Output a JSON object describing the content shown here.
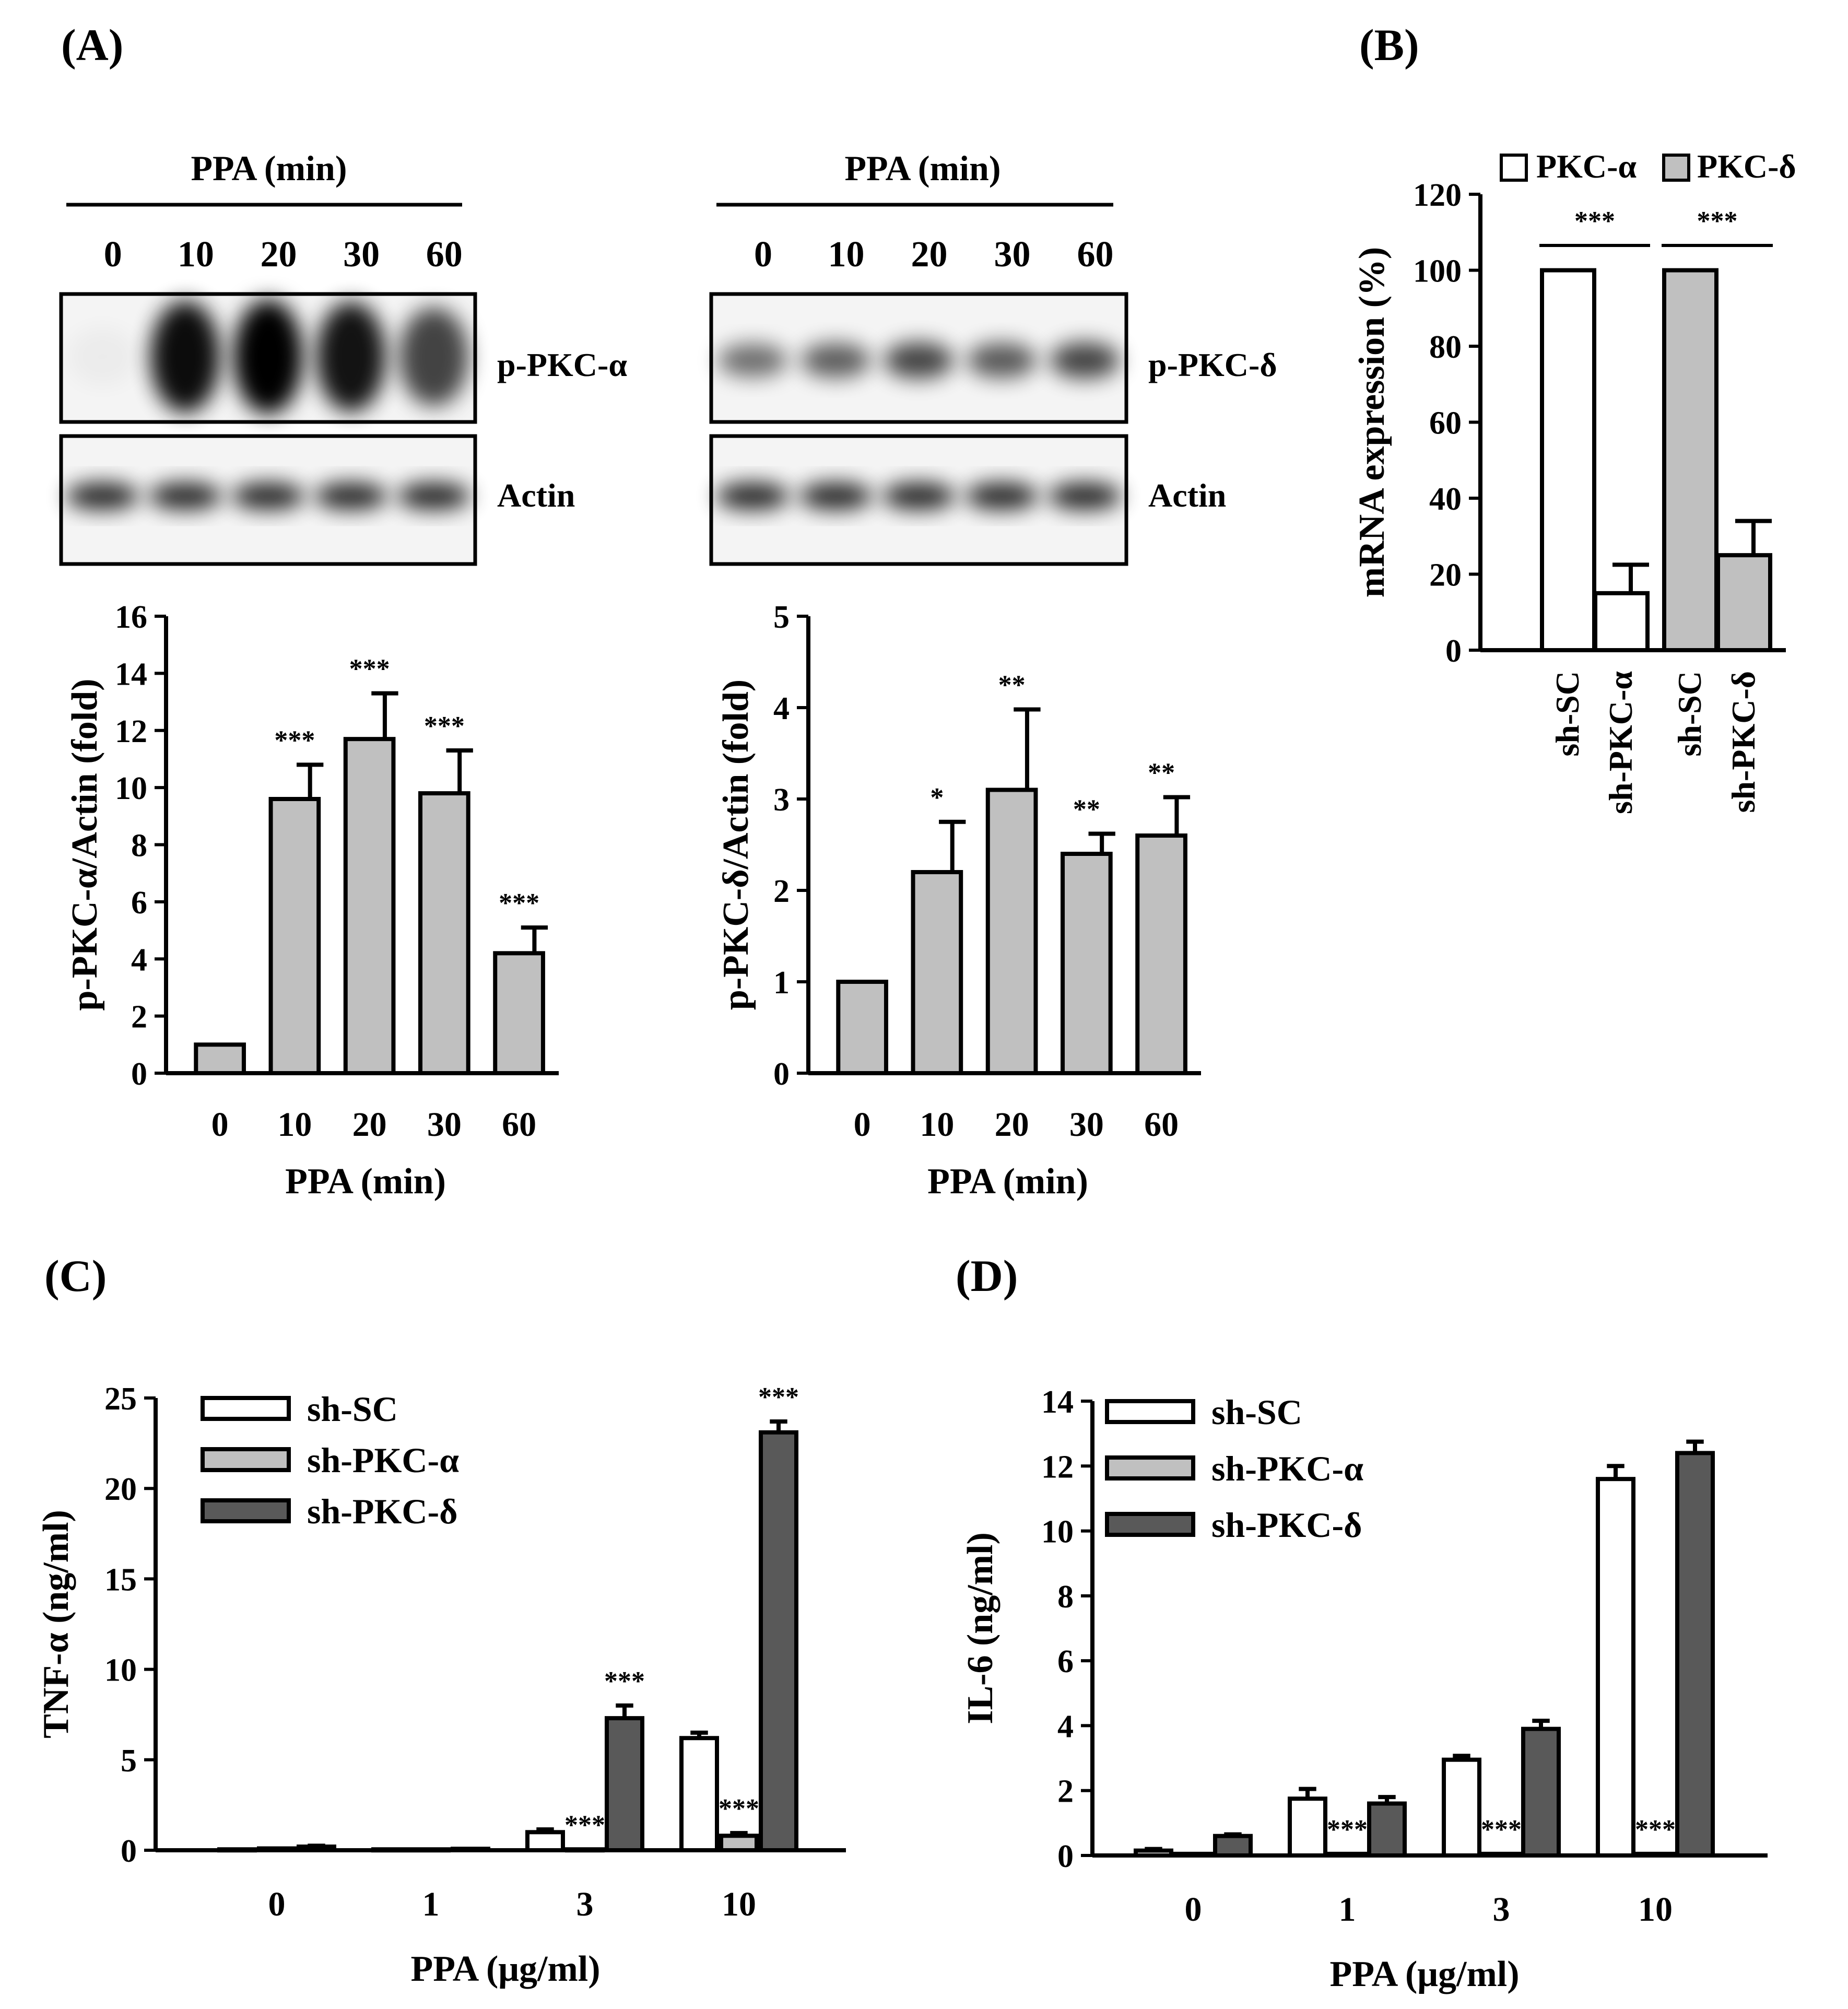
{
  "panels": {
    "A": "(A)",
    "B": "(B)",
    "C": "(C)",
    "D": "(D)"
  },
  "blots": {
    "left": {
      "header": "PPA (min)",
      "lanes": [
        "0",
        "10",
        "20",
        "30",
        "60"
      ],
      "rows": [
        "p-PKC-α",
        "Actin"
      ],
      "band_intensity": [
        0.03,
        0.95,
        1.0,
        0.92,
        0.72
      ]
    },
    "right": {
      "header": "PPA (min)",
      "lanes": [
        "0",
        "10",
        "20",
        "30",
        "60"
      ],
      "rows": [
        "p-PKC-δ",
        "Actin"
      ],
      "band_intensity": [
        0.55,
        0.62,
        0.72,
        0.64,
        0.72
      ]
    }
  },
  "colors": {
    "white_bar": "#ffffff",
    "light_gray_bar": "#c0c0c0",
    "dark_gray_bar": "#595959",
    "axis": "#000000"
  },
  "chart_data": [
    {
      "id": "A1",
      "type": "bar",
      "categories": [
        "0",
        "10",
        "20",
        "30",
        "60"
      ],
      "values": [
        1.0,
        9.6,
        11.7,
        9.8,
        4.2
      ],
      "errors": [
        0,
        1.2,
        1.6,
        1.5,
        0.9
      ],
      "annotations": [
        "",
        "***",
        "***",
        "***",
        "***"
      ],
      "xlabel": "PPA (min)",
      "ylabel": "p-PKC-α/Actin (fold)",
      "ylim": [
        0,
        16
      ],
      "yticks": [
        "0",
        "2",
        "4",
        "6",
        "8",
        "10",
        "12",
        "14",
        "16"
      ]
    },
    {
      "id": "A2",
      "type": "bar",
      "categories": [
        "0",
        "10",
        "20",
        "30",
        "60"
      ],
      "values": [
        1.0,
        2.2,
        3.1,
        2.4,
        2.6
      ],
      "errors": [
        0,
        0.55,
        0.88,
        0.22,
        0.42
      ],
      "annotations": [
        "",
        "*",
        "**",
        "**",
        "**"
      ],
      "xlabel": "PPA (min)",
      "ylabel": "p-PKC-δ/Actin (fold)",
      "ylim": [
        0,
        5
      ],
      "yticks": [
        "0",
        "1",
        "2",
        "3",
        "4",
        "5"
      ]
    },
    {
      "id": "B",
      "type": "bar",
      "categories": [
        "sh-SC",
        "sh-PKC-α",
        "sh-SC",
        "sh-PKC-δ"
      ],
      "values": [
        100,
        15,
        100,
        25
      ],
      "errors": [
        0,
        7.5,
        0,
        9
      ],
      "bar_colors": [
        "white",
        "white",
        "gray",
        "gray"
      ],
      "legend": [
        "PKC-α",
        "PKC-δ"
      ],
      "brackets": [
        "***",
        "***"
      ],
      "ylabel": "mRNA expression (%)",
      "ylim": [
        0,
        120
      ],
      "yticks": [
        "0",
        "20",
        "40",
        "60",
        "80",
        "100",
        "120"
      ]
    },
    {
      "id": "C",
      "type": "bar",
      "categories": [
        "0",
        "1",
        "3",
        "10"
      ],
      "series": [
        {
          "name": "sh-SC",
          "color": "white",
          "values": [
            0.05,
            0.05,
            1.0,
            6.2
          ],
          "errors": [
            0,
            0,
            0.15,
            0.3
          ],
          "annotations": [
            "",
            "",
            "",
            ""
          ]
        },
        {
          "name": "sh-PKC-α",
          "color": "light",
          "values": [
            0.1,
            0.05,
            0.05,
            0.8
          ],
          "errors": [
            0,
            0,
            0,
            0.15
          ],
          "annotations": [
            "",
            "",
            "***",
            "***"
          ]
        },
        {
          "name": "sh-PKC-δ",
          "color": "dark",
          "values": [
            0.2,
            0.08,
            7.3,
            23.1
          ],
          "errors": [
            0.05,
            0,
            0.7,
            0.6
          ],
          "annotations": [
            "",
            "",
            "***",
            "***"
          ]
        }
      ],
      "xlabel": "PPA (μg/ml)",
      "ylabel": "TNF-α (ng/ml)",
      "ylim": [
        0,
        25
      ],
      "yticks": [
        "0",
        "5",
        "10",
        "15",
        "20",
        "25"
      ]
    },
    {
      "id": "D",
      "type": "bar",
      "categories": [
        "0",
        "1",
        "3",
        "10"
      ],
      "series": [
        {
          "name": "sh-SC",
          "color": "white",
          "values": [
            0.15,
            1.75,
            2.95,
            11.6
          ],
          "errors": [
            0.05,
            0.3,
            0.12,
            0.4
          ],
          "annotations": [
            "",
            "",
            "",
            ""
          ]
        },
        {
          "name": "sh-PKC-α",
          "color": "light",
          "values": [
            0.05,
            0.05,
            0.05,
            0.05
          ],
          "errors": [
            0,
            0,
            0,
            0
          ],
          "annotations": [
            "",
            "***",
            "***",
            "***"
          ]
        },
        {
          "name": "sh-PKC-δ",
          "color": "dark",
          "values": [
            0.6,
            1.6,
            3.9,
            12.4
          ],
          "errors": [
            0.05,
            0.2,
            0.25,
            0.35
          ],
          "annotations": [
            "",
            "",
            "",
            ""
          ]
        }
      ],
      "xlabel": "PPA (μg/ml)",
      "ylabel": "IL-6 (ng/ml)",
      "ylim": [
        0,
        14
      ],
      "yticks": [
        "0",
        "2",
        "4",
        "6",
        "8",
        "10",
        "12",
        "14"
      ]
    }
  ]
}
